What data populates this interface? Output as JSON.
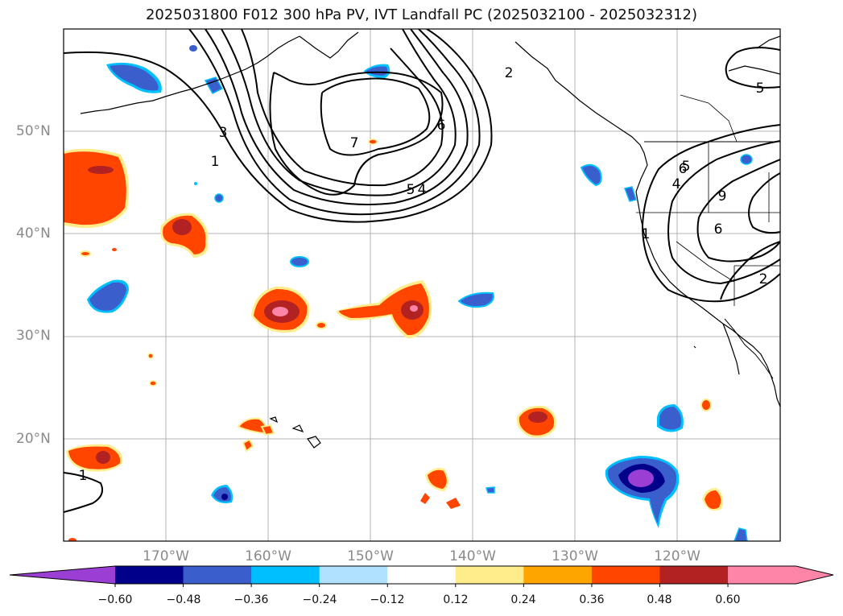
{
  "title": "2025031800 F012 300 hPa PV, IVT Landfall PC (2025032100 - 2025032312)",
  "map": {
    "projection": "PlateCarree",
    "lon_range": [
      -180,
      -110
    ],
    "lat_range": [
      10,
      60
    ],
    "grid": true,
    "lat_ticks": [
      "50°N",
      "40°N",
      "30°N",
      "20°N"
    ],
    "lon_ticks": [
      "170°W",
      "160°W",
      "150°W",
      "140°W",
      "130°W",
      "120°W"
    ],
    "contour_labels": [
      "1",
      "2",
      "3",
      "4",
      "5",
      "6",
      "7",
      "5",
      "6",
      "4",
      "5",
      "9",
      "6",
      "2",
      "1",
      "1"
    ]
  },
  "colorbar": {
    "extend": "both",
    "ticks": [
      "−0.60",
      "−0.48",
      "−0.36",
      "−0.24",
      "−0.12",
      "0.12",
      "0.24",
      "0.36",
      "0.48",
      "0.60"
    ],
    "colors": [
      "#9b3ed3",
      "#00008b",
      "#3a5fcd",
      "#00bfff",
      "#b0e2ff",
      "#ffffff",
      "#ffec8b",
      "#ffa500",
      "#ff4500",
      "#b22222",
      "#ff85a8",
      "#ff85a8"
    ]
  }
}
